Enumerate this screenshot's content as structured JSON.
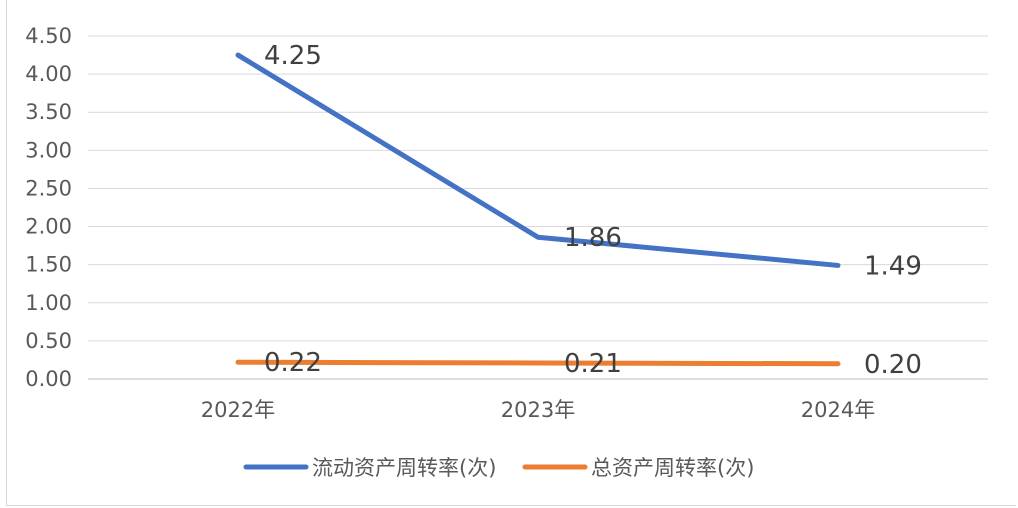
{
  "chart_data": {
    "type": "line",
    "categories": [
      "2022年",
      "2023年",
      "2024年"
    ],
    "ylim": [
      0,
      4.5
    ],
    "yticks": [
      "0.00",
      "0.50",
      "1.00",
      "1.50",
      "2.00",
      "2.50",
      "3.00",
      "3.50",
      "4.00",
      "4.50"
    ],
    "grid": true,
    "legend": "bottom",
    "series": [
      {
        "name": "流动资产周转率(次)",
        "values": [
          4.25,
          1.86,
          1.49
        ],
        "labels": [
          "4.25",
          "1.86",
          "1.49"
        ],
        "color": "#4472c4"
      },
      {
        "name": "总资产周转率(次)",
        "values": [
          0.22,
          0.21,
          0.2
        ],
        "labels": [
          "0.22",
          "0.21",
          "0.20"
        ],
        "color": "#ed7d31"
      }
    ]
  }
}
